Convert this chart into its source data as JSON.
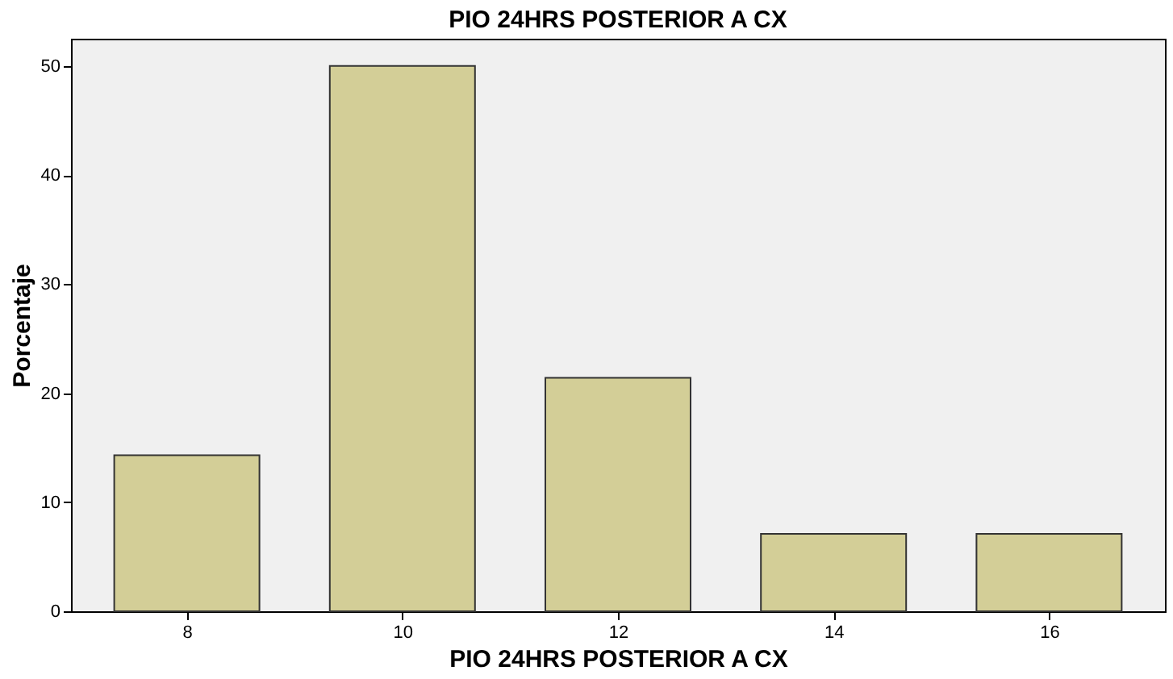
{
  "chart_data": {
    "type": "bar",
    "title": "PIO 24HRS POSTERIOR A CX",
    "xlabel": "PIO 24HRS POSTERIOR A CX",
    "ylabel": "Porcentaje",
    "categories": [
      "8",
      "10",
      "12",
      "14",
      "16"
    ],
    "values": [
      14.3,
      50,
      21.4,
      7.1,
      7.1
    ],
    "color": "#d3ce97",
    "ylim": [
      0,
      52.5
    ],
    "yticks": [
      0,
      10,
      20,
      30,
      40,
      50
    ],
    "grid": false
  }
}
